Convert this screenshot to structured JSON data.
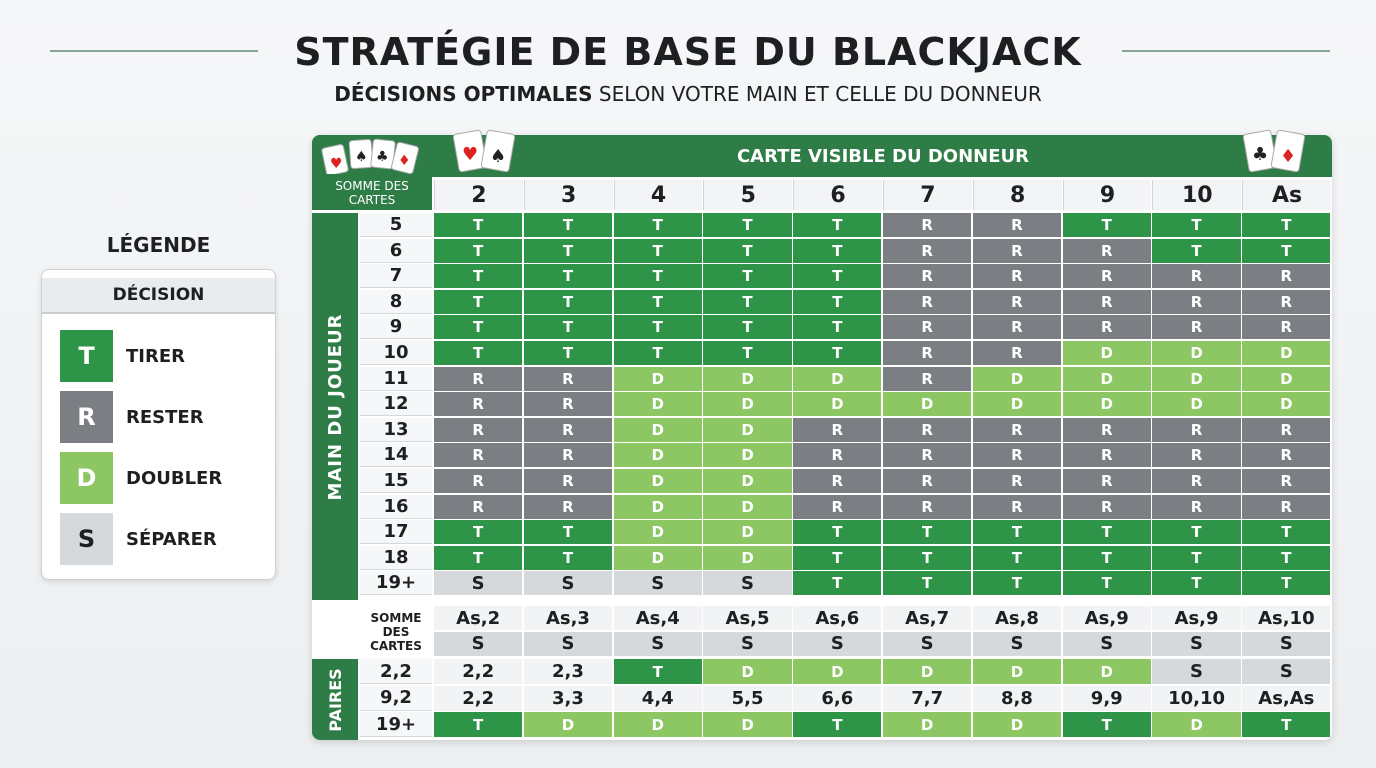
{
  "header": {
    "title": "STRATÉGIE DE BASE DU BLACKJACK",
    "subtitle_bold": "DÉCISIONS OPTIMALES",
    "subtitle_rest": "SELON VOTRE MAIN ET CELLE DU DONNEUR"
  },
  "legend": {
    "title": "LÉGENDE",
    "heading": "DÉCISION",
    "items": [
      {
        "code": "T",
        "label": "TIRER",
        "color": "#2e9447"
      },
      {
        "code": "R",
        "label": "RESTER",
        "color": "#7b7f84"
      },
      {
        "code": "D",
        "label": "DOUBLER",
        "color": "#8cc763"
      },
      {
        "code": "S",
        "label": "SÉPARER",
        "color": "#d5d9dc"
      }
    ]
  },
  "table": {
    "corner_label": "SOMME DES CARTES",
    "dealer_label": "CARTE VISIBLE DU DONNEUR",
    "player_label": "MAIN DU JOUEUR",
    "dealer_cards": [
      "2",
      "3",
      "4",
      "5",
      "6",
      "7",
      "8",
      "9",
      "10",
      "As"
    ],
    "hard": {
      "rows": [
        {
          "label": "5",
          "cells": [
            "T",
            "T",
            "T",
            "T",
            "T",
            "R",
            "R",
            "T",
            "T",
            "T"
          ]
        },
        {
          "label": "6",
          "cells": [
            "T",
            "T",
            "T",
            "T",
            "T",
            "R",
            "R",
            "R",
            "T",
            "T"
          ]
        },
        {
          "label": "7",
          "cells": [
            "T",
            "T",
            "T",
            "T",
            "T",
            "R",
            "R",
            "R",
            "R",
            "R"
          ]
        },
        {
          "label": "8",
          "cells": [
            "T",
            "T",
            "T",
            "T",
            "T",
            "R",
            "R",
            "R",
            "R",
            "R"
          ]
        },
        {
          "label": "9",
          "cells": [
            "T",
            "T",
            "T",
            "T",
            "T",
            "R",
            "R",
            "R",
            "R",
            "R"
          ]
        },
        {
          "label": "10",
          "cells": [
            "T",
            "T",
            "T",
            "T",
            "T",
            "R",
            "R",
            "D",
            "D",
            "D"
          ]
        },
        {
          "label": "11",
          "cells": [
            "R",
            "R",
            "D",
            "D",
            "D",
            "R",
            "D",
            "D",
            "D",
            "D"
          ]
        },
        {
          "label": "12",
          "cells": [
            "R",
            "R",
            "D",
            "D",
            "D",
            "D",
            "D",
            "D",
            "D",
            "D"
          ]
        },
        {
          "label": "13",
          "cells": [
            "R",
            "R",
            "D",
            "D",
            "R",
            "R",
            "R",
            "R",
            "R",
            "R"
          ]
        },
        {
          "label": "14",
          "cells": [
            "R",
            "R",
            "D",
            "D",
            "R",
            "R",
            "R",
            "R",
            "R",
            "R"
          ]
        },
        {
          "label": "15",
          "cells": [
            "R",
            "R",
            "D",
            "D",
            "R",
            "R",
            "R",
            "R",
            "R",
            "R"
          ]
        },
        {
          "label": "16",
          "cells": [
            "R",
            "R",
            "D",
            "D",
            "R",
            "R",
            "R",
            "R",
            "R",
            "R"
          ]
        },
        {
          "label": "17",
          "cells": [
            "T",
            "T",
            "D",
            "D",
            "T",
            "T",
            "T",
            "T",
            "T",
            "T"
          ]
        },
        {
          "label": "18",
          "cells": [
            "T",
            "T",
            "D",
            "D",
            "T",
            "T",
            "T",
            "T",
            "T",
            "T"
          ]
        },
        {
          "label": "19+",
          "cells": [
            "S",
            "S",
            "S",
            "S",
            "T",
            "T",
            "T",
            "T",
            "T",
            "T"
          ]
        }
      ]
    },
    "soft": {
      "label": "SOMME DES CARTES",
      "rows": [
        [
          "As,2",
          "As,3",
          "As,4",
          "As,5",
          "As,6",
          "As,7",
          "As,8",
          "As,9",
          "As,9",
          "As,10"
        ],
        [
          "S",
          "S",
          "S",
          "S",
          "S",
          "S",
          "S",
          "S",
          "S",
          "S"
        ]
      ]
    },
    "pairs": {
      "label": "PAIRES",
      "rows": [
        {
          "label": "2,2",
          "cells": [
            "2,2",
            "2,3",
            "T",
            "D",
            "D",
            "D",
            "D",
            "D",
            "S",
            "S"
          ]
        },
        {
          "label": "9,2",
          "cells": [
            "2,2",
            "3,3",
            "4,4",
            "5,5",
            "6,6",
            "7,7",
            "8,8",
            "9,9",
            "10,10",
            "As,As"
          ]
        },
        {
          "label": "19+",
          "cells": [
            "T",
            "D",
            "D",
            "D",
            "T",
            "D",
            "D",
            "T",
            "D",
            "T"
          ]
        }
      ]
    }
  }
}
